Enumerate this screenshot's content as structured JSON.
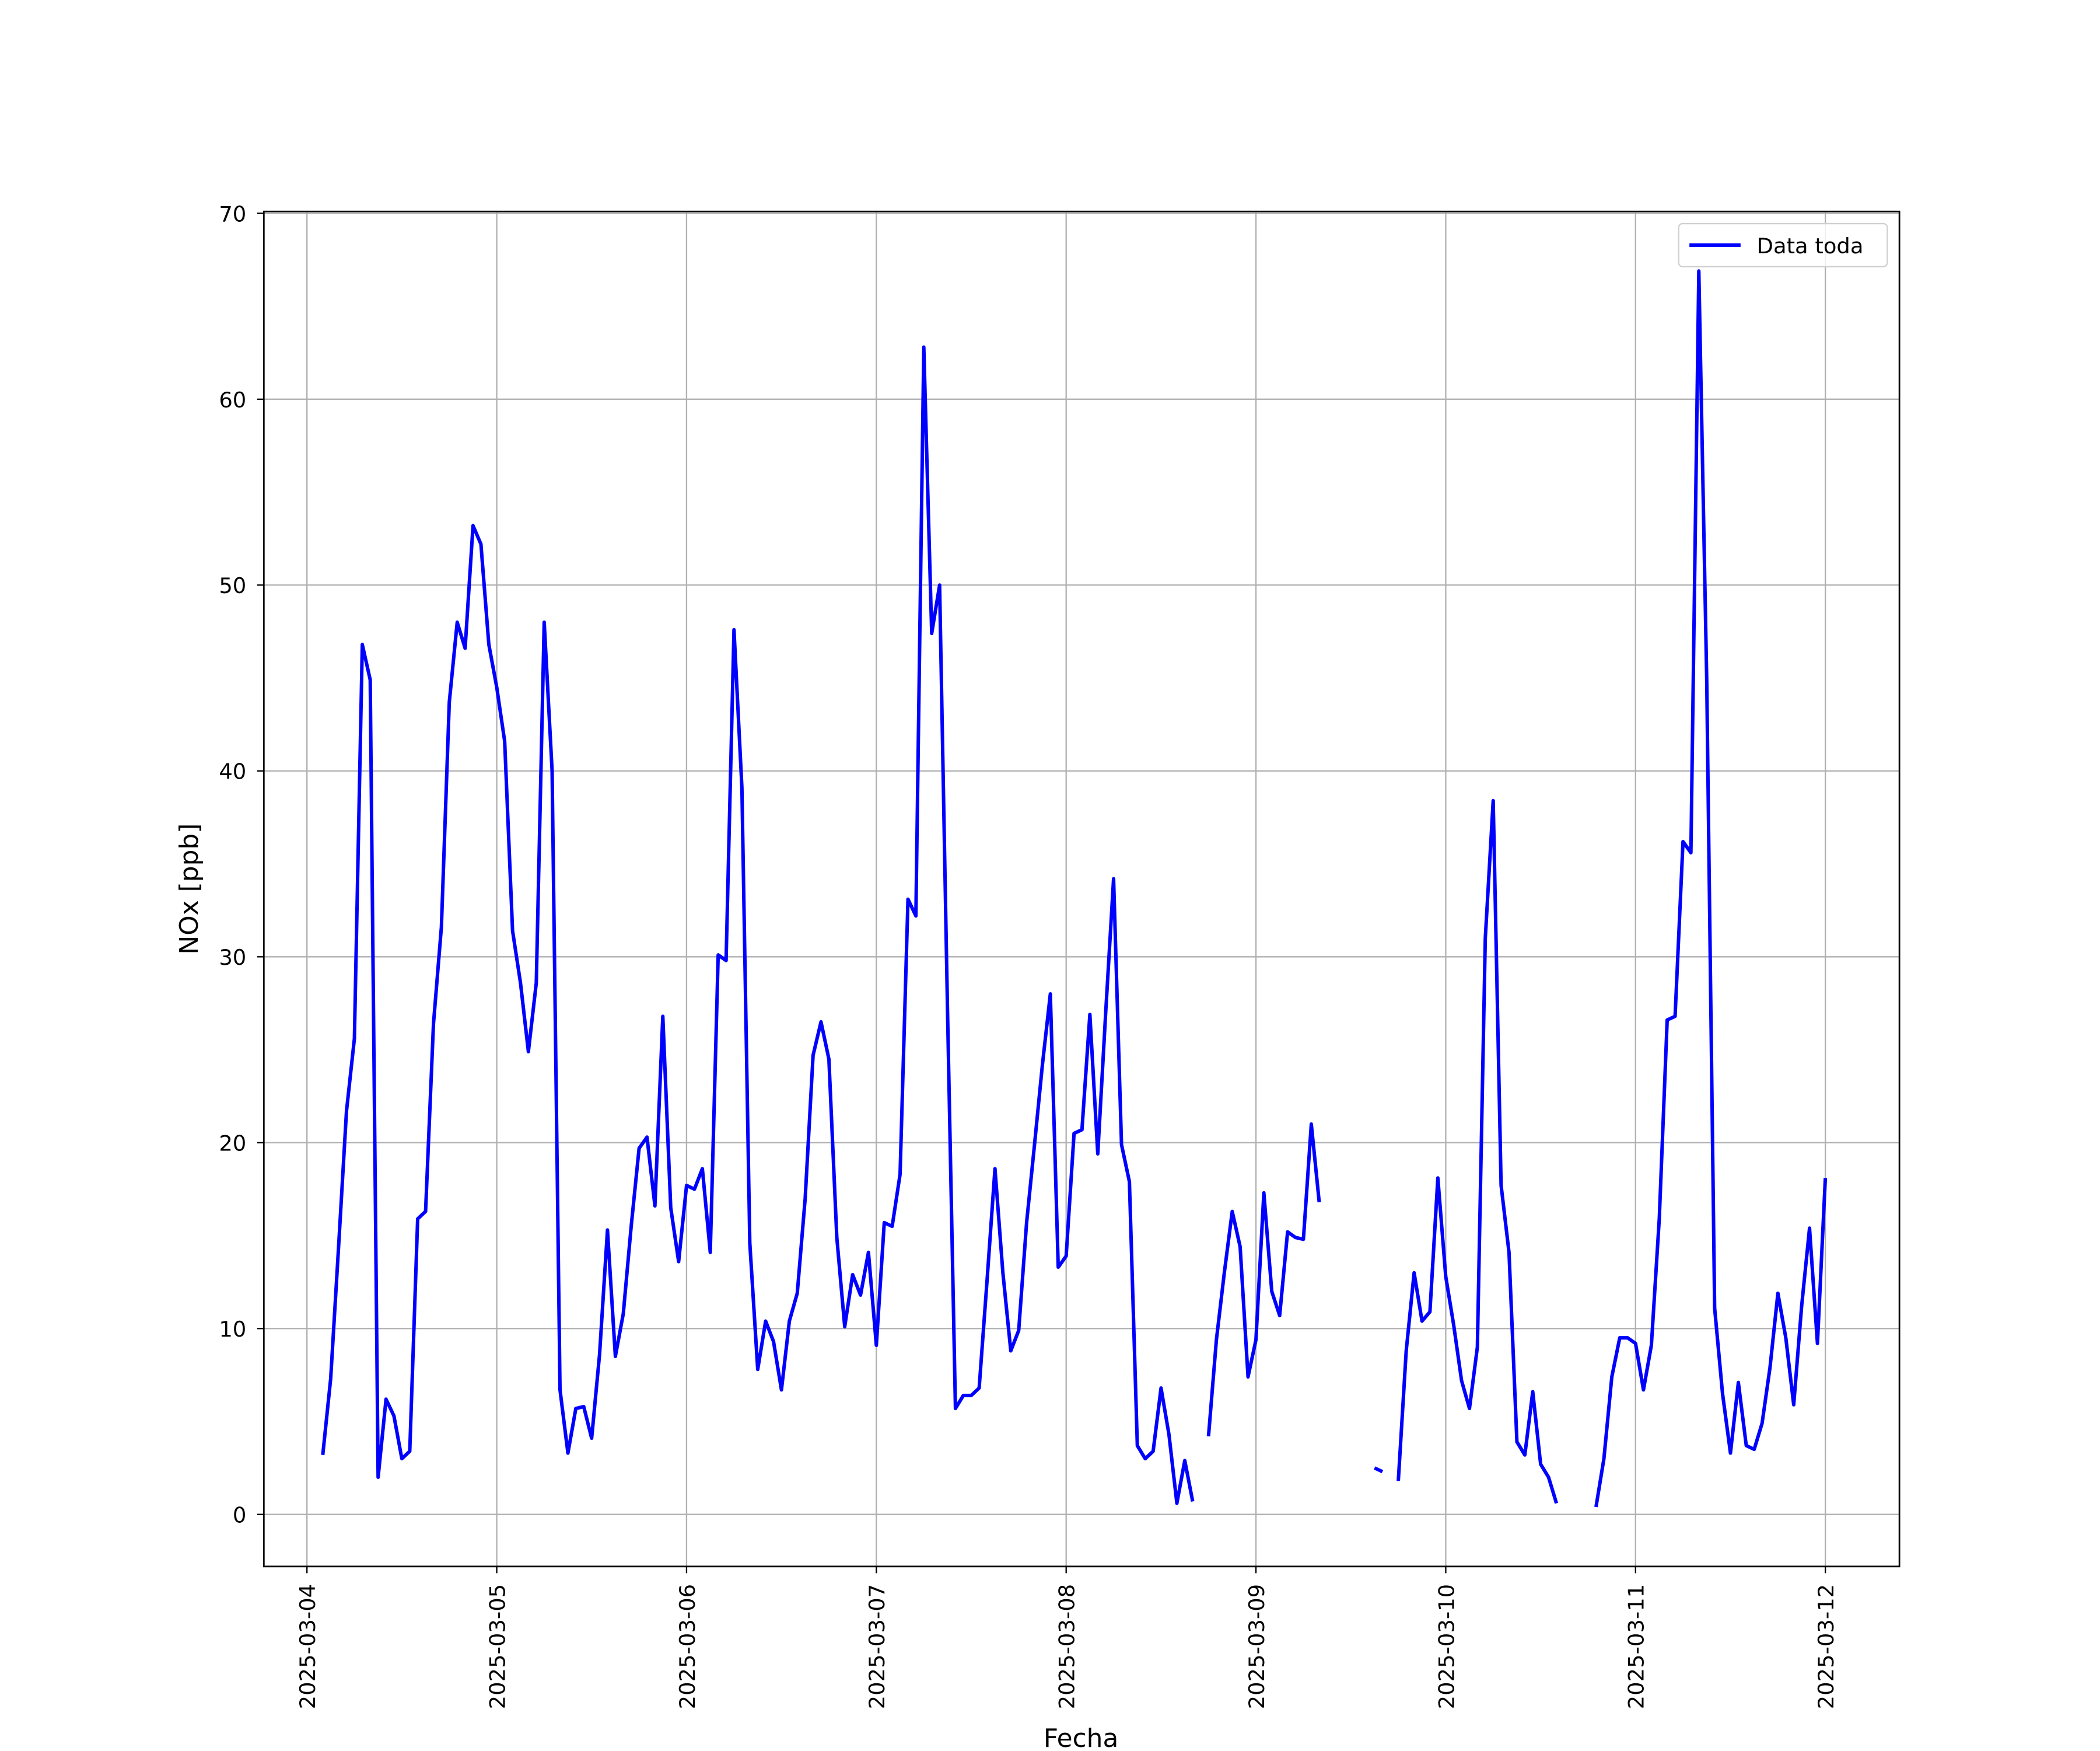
{
  "chart_data": {
    "type": "line",
    "xlabel": "Fecha",
    "ylabel": "NOx [ppb]",
    "xlim": [
      "2025-03-03 18:33",
      "2025-03-12 09:22"
    ],
    "xticks": [
      "2025-03-04",
      "2025-03-05",
      "2025-03-06",
      "2025-03-07",
      "2025-03-08",
      "2025-03-09",
      "2025-03-10",
      "2025-03-11",
      "2025-03-12"
    ],
    "ylim": [
      -2.8,
      70.1
    ],
    "yticks": [
      0,
      10,
      20,
      30,
      40,
      50,
      60,
      70
    ],
    "grid": true,
    "legend": "upper right",
    "x": [
      "2025-03-04 02:00",
      "2025-03-04 03:00",
      "2025-03-04 04:00",
      "2025-03-04 05:00",
      "2025-03-04 06:00",
      "2025-03-04 07:00",
      "2025-03-04 08:00",
      "2025-03-04 09:00",
      "2025-03-04 10:00",
      "2025-03-04 11:00",
      "2025-03-04 12:00",
      "2025-03-04 13:00",
      "2025-03-04 14:00",
      "2025-03-04 15:00",
      "2025-03-04 16:00",
      "2025-03-04 17:00",
      "2025-03-04 18:00",
      "2025-03-04 19:00",
      "2025-03-04 20:00",
      "2025-03-04 21:00",
      "2025-03-04 22:00",
      "2025-03-04 23:00",
      "2025-03-05 00:00",
      "2025-03-05 01:00",
      "2025-03-05 02:00",
      "2025-03-05 03:00",
      "2025-03-05 04:00",
      "2025-03-05 05:00",
      "2025-03-05 06:00",
      "2025-03-05 07:00",
      "2025-03-05 08:00",
      "2025-03-05 09:00",
      "2025-03-05 10:00",
      "2025-03-05 11:00",
      "2025-03-05 12:00",
      "2025-03-05 13:00",
      "2025-03-05 14:00",
      "2025-03-05 15:00",
      "2025-03-05 16:00",
      "2025-03-05 17:00",
      "2025-03-05 18:00",
      "2025-03-05 19:00",
      "2025-03-05 20:00",
      "2025-03-05 21:00",
      "2025-03-05 22:00",
      "2025-03-05 23:00",
      "2025-03-06 00:00",
      "2025-03-06 01:00",
      "2025-03-06 02:00",
      "2025-03-06 03:00",
      "2025-03-06 04:00",
      "2025-03-06 05:00",
      "2025-03-06 06:00",
      "2025-03-06 07:00",
      "2025-03-06 08:00",
      "2025-03-06 09:00",
      "2025-03-06 10:00",
      "2025-03-06 11:00",
      "2025-03-06 12:00",
      "2025-03-06 13:00",
      "2025-03-06 14:00",
      "2025-03-06 15:00",
      "2025-03-06 16:00",
      "2025-03-06 17:00",
      "2025-03-06 18:00",
      "2025-03-06 19:00",
      "2025-03-06 20:00",
      "2025-03-06 21:00",
      "2025-03-06 22:00",
      "2025-03-06 23:00",
      "2025-03-07 00:00",
      "2025-03-07 01:00",
      "2025-03-07 02:00",
      "2025-03-07 03:00",
      "2025-03-07 04:00",
      "2025-03-07 05:00",
      "2025-03-07 06:00",
      "2025-03-07 07:00",
      "2025-03-07 08:00",
      "2025-03-07 09:00",
      "2025-03-07 10:00",
      "2025-03-07 11:00",
      "2025-03-07 12:00",
      "2025-03-07 13:00",
      "2025-03-07 14:00",
      "2025-03-07 15:00",
      "2025-03-07 16:00",
      "2025-03-07 17:00",
      "2025-03-07 18:00",
      "2025-03-07 19:00",
      "2025-03-07 20:00",
      "2025-03-07 21:00",
      "2025-03-07 22:00",
      "2025-03-07 23:00",
      "2025-03-08 00:00",
      "2025-03-08 01:00",
      "2025-03-08 02:00",
      "2025-03-08 03:00",
      "2025-03-08 04:00",
      "2025-03-08 05:00",
      "2025-03-08 06:00",
      "2025-03-08 07:00",
      "2025-03-08 08:00",
      "2025-03-08 09:00",
      "2025-03-08 10:00",
      "2025-03-08 11:00",
      "2025-03-08 12:00",
      "2025-03-08 13:00",
      "2025-03-08 14:00",
      "2025-03-08 15:00",
      "2025-03-08 16:00",
      "2025-03-08 17:00",
      "2025-03-08 18:00",
      "2025-03-08 19:00",
      "2025-03-08 20:00",
      "2025-03-08 21:00",
      "2025-03-08 22:00",
      "2025-03-08 23:00",
      "2025-03-09 00:00",
      "2025-03-09 01:00",
      "2025-03-09 02:00",
      "2025-03-09 03:00",
      "2025-03-09 04:00",
      "2025-03-09 05:00",
      "2025-03-09 06:00",
      "2025-03-09 07:00",
      "2025-03-09 08:00",
      "2025-03-09 09:00",
      "2025-03-09 10:00",
      "2025-03-09 11:00",
      "2025-03-09 12:00",
      "2025-03-09 13:00",
      "2025-03-09 14:00",
      "2025-03-09 15:00",
      "2025-03-09 16:00",
      "2025-03-09 17:00",
      "2025-03-09 18:00",
      "2025-03-09 19:00",
      "2025-03-09 20:00",
      "2025-03-09 21:00",
      "2025-03-09 22:00",
      "2025-03-09 23:00",
      "2025-03-10 00:00",
      "2025-03-10 01:00",
      "2025-03-10 02:00",
      "2025-03-10 03:00",
      "2025-03-10 04:00",
      "2025-03-10 05:00",
      "2025-03-10 06:00",
      "2025-03-10 07:00",
      "2025-03-10 08:00",
      "2025-03-10 09:00",
      "2025-03-10 10:00",
      "2025-03-10 11:00",
      "2025-03-10 12:00",
      "2025-03-10 13:00",
      "2025-03-10 14:00",
      "2025-03-10 15:00",
      "2025-03-10 16:00",
      "2025-03-10 17:00",
      "2025-03-10 18:00",
      "2025-03-10 19:00",
      "2025-03-10 20:00",
      "2025-03-10 21:00",
      "2025-03-10 22:00",
      "2025-03-10 23:00",
      "2025-03-11 00:00",
      "2025-03-11 01:00",
      "2025-03-11 02:00",
      "2025-03-11 03:00",
      "2025-03-11 04:00",
      "2025-03-11 05:00",
      "2025-03-11 06:00",
      "2025-03-11 07:00",
      "2025-03-11 08:00",
      "2025-03-11 09:00",
      "2025-03-11 10:00",
      "2025-03-11 11:00",
      "2025-03-11 12:00",
      "2025-03-11 13:00",
      "2025-03-11 14:00",
      "2025-03-11 15:00",
      "2025-03-11 16:00",
      "2025-03-11 17:00",
      "2025-03-11 18:00",
      "2025-03-11 19:00",
      "2025-03-11 20:00",
      "2025-03-11 21:00",
      "2025-03-11 22:00",
      "2025-03-11 23:00",
      "2025-03-12 00:00"
    ],
    "series": [
      {
        "name": "Data toda",
        "color": "#0000ff",
        "values": [
          3.2,
          7.3,
          14.4,
          21.7,
          25.6,
          46.8,
          44.9,
          2.0,
          6.2,
          5.3,
          3.0,
          3.4,
          15.9,
          16.3,
          26.4,
          31.6,
          43.7,
          48.0,
          46.6,
          53.2,
          52.2,
          46.8,
          44.5,
          41.6,
          31.4,
          28.6,
          24.9,
          28.6,
          48.0,
          40.0,
          6.7,
          3.3,
          5.7,
          5.8,
          4.1,
          8.6,
          15.3,
          8.5,
          10.8,
          15.5,
          19.7,
          20.3,
          16.6,
          26.8,
          16.5,
          13.6,
          17.7,
          17.5,
          18.6,
          14.1,
          30.1,
          29.8,
          47.6,
          39.1,
          14.6,
          7.8,
          10.4,
          9.3,
          6.7,
          10.4,
          11.9,
          17.0,
          24.7,
          26.5,
          24.5,
          14.9,
          10.1,
          12.9,
          11.8,
          14.1,
          9.1,
          15.7,
          15.5,
          18.3,
          33.1,
          32.2,
          62.8,
          47.4,
          50.0,
          27.1,
          5.7,
          6.4,
          6.4,
          6.8,
          12.6,
          18.6,
          13.0,
          8.8,
          9.9,
          15.7,
          19.9,
          24.2,
          28.0,
          13.3,
          13.9,
          20.5,
          20.7,
          26.9,
          19.4,
          27.0,
          34.2,
          19.9,
          17.9,
          3.7,
          3.0,
          3.4,
          6.8,
          4.3,
          0.6,
          2.9,
          0.7,
          null,
          4.2,
          9.4,
          13.0,
          16.3,
          14.4,
          7.4,
          9.4,
          17.3,
          12.0,
          10.7,
          15.2,
          14.9,
          14.8,
          21.0,
          16.8,
          null,
          null,
          null,
          null,
          null,
          null,
          2.5,
          2.3,
          null,
          1.8,
          8.8,
          13.0,
          10.4,
          10.9,
          18.1,
          12.8,
          10.2,
          7.2,
          5.7,
          9.0,
          31.0,
          38.4,
          17.7,
          14.1,
          3.9,
          3.2,
          6.6,
          2.7,
          2.0,
          0.6,
          null,
          null,
          null,
          null,
          0.4,
          3.0,
          7.4,
          9.5,
          9.5,
          9.2,
          6.7,
          9.1,
          15.9,
          26.6,
          26.8,
          36.2,
          35.6,
          66.9,
          44.9,
          11.1,
          6.5,
          3.3,
          7.1,
          3.7,
          3.5,
          4.9,
          7.9,
          11.9,
          9.5,
          5.9,
          11.2,
          15.4,
          9.2,
          18.1
        ]
      }
    ]
  }
}
